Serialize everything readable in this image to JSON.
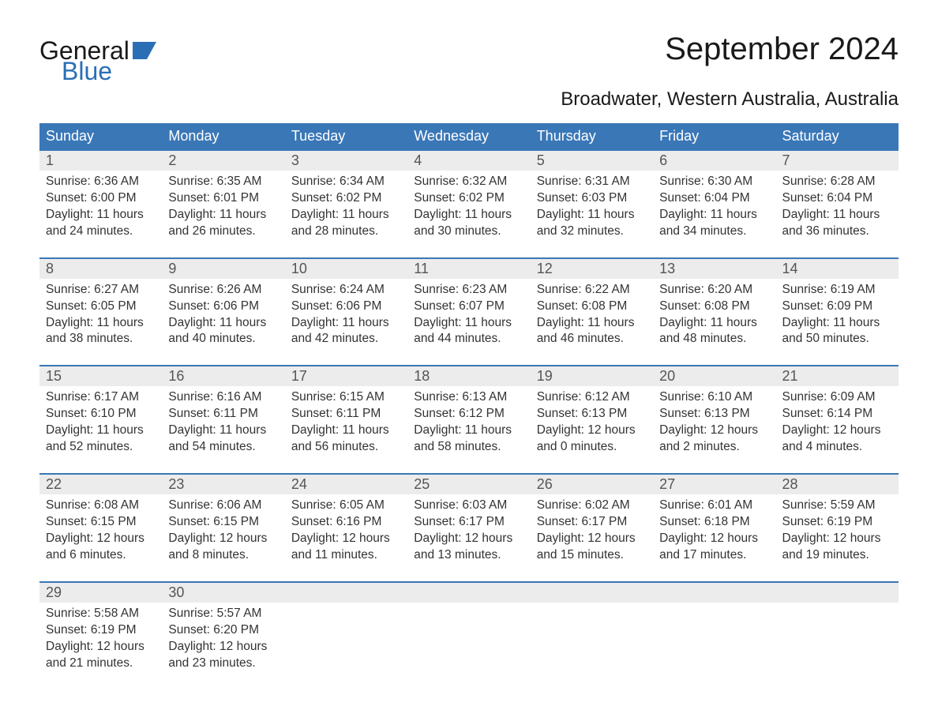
{
  "logo": {
    "line1": "General",
    "line2": "Blue"
  },
  "title": "September 2024",
  "subtitle": "Broadwater, Western Australia, Australia",
  "colors": {
    "header_bg": "#3a77b7",
    "header_text": "#ffffff",
    "daynum_bg": "#ececec",
    "daynum_border": "#3a77b7",
    "body_text": "#333333",
    "logo_blue": "#2a6fb5",
    "page_bg": "#ffffff"
  },
  "typography": {
    "title_fontsize": 40,
    "subtitle_fontsize": 24,
    "weekday_fontsize": 18,
    "daynum_fontsize": 18,
    "body_fontsize": 15.5,
    "font_family": "Arial"
  },
  "weekdays": [
    "Sunday",
    "Monday",
    "Tuesday",
    "Wednesday",
    "Thursday",
    "Friday",
    "Saturday"
  ],
  "weeks": [
    [
      {
        "num": "1",
        "sunrise": "Sunrise: 6:36 AM",
        "sunset": "Sunset: 6:00 PM",
        "day1": "Daylight: 11 hours",
        "day2": "and 24 minutes."
      },
      {
        "num": "2",
        "sunrise": "Sunrise: 6:35 AM",
        "sunset": "Sunset: 6:01 PM",
        "day1": "Daylight: 11 hours",
        "day2": "and 26 minutes."
      },
      {
        "num": "3",
        "sunrise": "Sunrise: 6:34 AM",
        "sunset": "Sunset: 6:02 PM",
        "day1": "Daylight: 11 hours",
        "day2": "and 28 minutes."
      },
      {
        "num": "4",
        "sunrise": "Sunrise: 6:32 AM",
        "sunset": "Sunset: 6:02 PM",
        "day1": "Daylight: 11 hours",
        "day2": "and 30 minutes."
      },
      {
        "num": "5",
        "sunrise": "Sunrise: 6:31 AM",
        "sunset": "Sunset: 6:03 PM",
        "day1": "Daylight: 11 hours",
        "day2": "and 32 minutes."
      },
      {
        "num": "6",
        "sunrise": "Sunrise: 6:30 AM",
        "sunset": "Sunset: 6:04 PM",
        "day1": "Daylight: 11 hours",
        "day2": "and 34 minutes."
      },
      {
        "num": "7",
        "sunrise": "Sunrise: 6:28 AM",
        "sunset": "Sunset: 6:04 PM",
        "day1": "Daylight: 11 hours",
        "day2": "and 36 minutes."
      }
    ],
    [
      {
        "num": "8",
        "sunrise": "Sunrise: 6:27 AM",
        "sunset": "Sunset: 6:05 PM",
        "day1": "Daylight: 11 hours",
        "day2": "and 38 minutes."
      },
      {
        "num": "9",
        "sunrise": "Sunrise: 6:26 AM",
        "sunset": "Sunset: 6:06 PM",
        "day1": "Daylight: 11 hours",
        "day2": "and 40 minutes."
      },
      {
        "num": "10",
        "sunrise": "Sunrise: 6:24 AM",
        "sunset": "Sunset: 6:06 PM",
        "day1": "Daylight: 11 hours",
        "day2": "and 42 minutes."
      },
      {
        "num": "11",
        "sunrise": "Sunrise: 6:23 AM",
        "sunset": "Sunset: 6:07 PM",
        "day1": "Daylight: 11 hours",
        "day2": "and 44 minutes."
      },
      {
        "num": "12",
        "sunrise": "Sunrise: 6:22 AM",
        "sunset": "Sunset: 6:08 PM",
        "day1": "Daylight: 11 hours",
        "day2": "and 46 minutes."
      },
      {
        "num": "13",
        "sunrise": "Sunrise: 6:20 AM",
        "sunset": "Sunset: 6:08 PM",
        "day1": "Daylight: 11 hours",
        "day2": "and 48 minutes."
      },
      {
        "num": "14",
        "sunrise": "Sunrise: 6:19 AM",
        "sunset": "Sunset: 6:09 PM",
        "day1": "Daylight: 11 hours",
        "day2": "and 50 minutes."
      }
    ],
    [
      {
        "num": "15",
        "sunrise": "Sunrise: 6:17 AM",
        "sunset": "Sunset: 6:10 PM",
        "day1": "Daylight: 11 hours",
        "day2": "and 52 minutes."
      },
      {
        "num": "16",
        "sunrise": "Sunrise: 6:16 AM",
        "sunset": "Sunset: 6:11 PM",
        "day1": "Daylight: 11 hours",
        "day2": "and 54 minutes."
      },
      {
        "num": "17",
        "sunrise": "Sunrise: 6:15 AM",
        "sunset": "Sunset: 6:11 PM",
        "day1": "Daylight: 11 hours",
        "day2": "and 56 minutes."
      },
      {
        "num": "18",
        "sunrise": "Sunrise: 6:13 AM",
        "sunset": "Sunset: 6:12 PM",
        "day1": "Daylight: 11 hours",
        "day2": "and 58 minutes."
      },
      {
        "num": "19",
        "sunrise": "Sunrise: 6:12 AM",
        "sunset": "Sunset: 6:13 PM",
        "day1": "Daylight: 12 hours",
        "day2": "and 0 minutes."
      },
      {
        "num": "20",
        "sunrise": "Sunrise: 6:10 AM",
        "sunset": "Sunset: 6:13 PM",
        "day1": "Daylight: 12 hours",
        "day2": "and 2 minutes."
      },
      {
        "num": "21",
        "sunrise": "Sunrise: 6:09 AM",
        "sunset": "Sunset: 6:14 PM",
        "day1": "Daylight: 12 hours",
        "day2": "and 4 minutes."
      }
    ],
    [
      {
        "num": "22",
        "sunrise": "Sunrise: 6:08 AM",
        "sunset": "Sunset: 6:15 PM",
        "day1": "Daylight: 12 hours",
        "day2": "and 6 minutes."
      },
      {
        "num": "23",
        "sunrise": "Sunrise: 6:06 AM",
        "sunset": "Sunset: 6:15 PM",
        "day1": "Daylight: 12 hours",
        "day2": "and 8 minutes."
      },
      {
        "num": "24",
        "sunrise": "Sunrise: 6:05 AM",
        "sunset": "Sunset: 6:16 PM",
        "day1": "Daylight: 12 hours",
        "day2": "and 11 minutes."
      },
      {
        "num": "25",
        "sunrise": "Sunrise: 6:03 AM",
        "sunset": "Sunset: 6:17 PM",
        "day1": "Daylight: 12 hours",
        "day2": "and 13 minutes."
      },
      {
        "num": "26",
        "sunrise": "Sunrise: 6:02 AM",
        "sunset": "Sunset: 6:17 PM",
        "day1": "Daylight: 12 hours",
        "day2": "and 15 minutes."
      },
      {
        "num": "27",
        "sunrise": "Sunrise: 6:01 AM",
        "sunset": "Sunset: 6:18 PM",
        "day1": "Daylight: 12 hours",
        "day2": "and 17 minutes."
      },
      {
        "num": "28",
        "sunrise": "Sunrise: 5:59 AM",
        "sunset": "Sunset: 6:19 PM",
        "day1": "Daylight: 12 hours",
        "day2": "and 19 minutes."
      }
    ],
    [
      {
        "num": "29",
        "sunrise": "Sunrise: 5:58 AM",
        "sunset": "Sunset: 6:19 PM",
        "day1": "Daylight: 12 hours",
        "day2": "and 21 minutes."
      },
      {
        "num": "30",
        "sunrise": "Sunrise: 5:57 AM",
        "sunset": "Sunset: 6:20 PM",
        "day1": "Daylight: 12 hours",
        "day2": "and 23 minutes."
      },
      null,
      null,
      null,
      null,
      null
    ]
  ]
}
